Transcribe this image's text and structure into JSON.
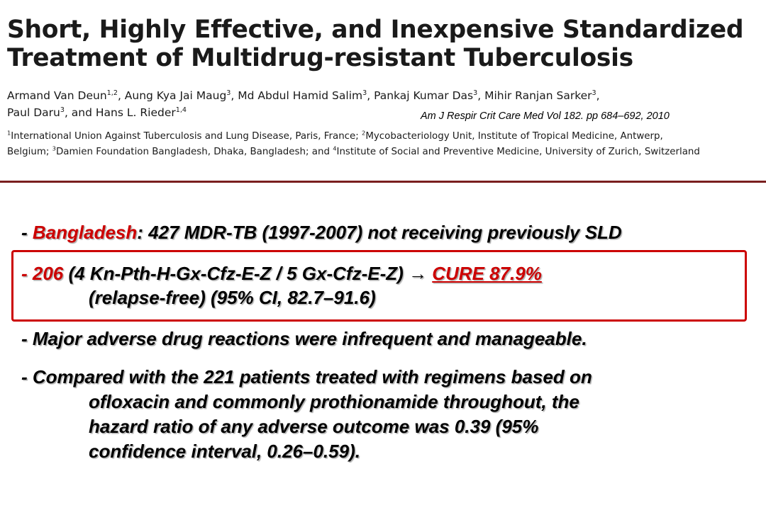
{
  "header": {
    "title_line1": "Short, Highly Effective, and Inexpensive Standardized",
    "title_line2": "Treatment of Multidrug-resistant Tuberculosis",
    "authors_line1": {
      "a1": "Armand Van Deun",
      "a1_sup": "1,2",
      "a2": ", Aung Kya Jai Maug",
      "a2_sup": "3",
      "a3": ", Md Abdul Hamid Salim",
      "a3_sup": "3",
      "a4": ", Pankaj Kumar Das",
      "a4_sup": "3",
      "a5": ", Mihir Ranjan Sarker",
      "a5_sup": "3",
      "a6": ","
    },
    "authors_line2": {
      "a1": "Paul Daru",
      "a1_sup": "3",
      "a2": ", and Hans L. Rieder",
      "a2_sup": "1,4"
    },
    "citation": "Am J Respir Crit Care Med Vol 182. pp 684–692, 2010",
    "affiliations_line1": {
      "s1": "1",
      "t1": "International Union Against Tuberculosis and Lung Disease, Paris, France; ",
      "s2": "2",
      "t2": "Mycobacteriology Unit, Institute of Tropical Medicine, Antwerp,"
    },
    "affiliations_line2": {
      "t0": "Belgium; ",
      "s3": "3",
      "t3": "Damien Foundation Bangladesh, Dhaka, Bangladesh; and ",
      "s4": "4",
      "t4": "Institute of Social and Preventive Medicine, University of Zurich, Switzerland"
    }
  },
  "bullets": {
    "b1": {
      "prefix": "- ",
      "country": "Bangladesh",
      "rest": ": 427 MDR-TB (1997-2007) not receiving previously SLD"
    },
    "b2": {
      "prefix": "- 206",
      "regimen": " (4 Kn-Pth-H-Gx-Cfz-E-Z / 5 Gx-Cfz-E-Z) ",
      "arrow": "→",
      "cure": "CURE 87.9%",
      "line2": "(relapse-free) (95% CI, 82.7–91.6)"
    },
    "b3": "- Major adverse drug reactions were infrequent and manageable.",
    "b4": {
      "line1": "- Compared with the 221 patients treated with regimens based on",
      "line2": "ofloxacin and commonly prothionamide throughout, the",
      "line3": "hazard ratio of any adverse outcome was 0.39 (95%",
      "line4": "confidence interval, 0.26–0.59)."
    }
  },
  "colors": {
    "accent_red": "#cc0000",
    "divider": "#7a1f1f"
  }
}
